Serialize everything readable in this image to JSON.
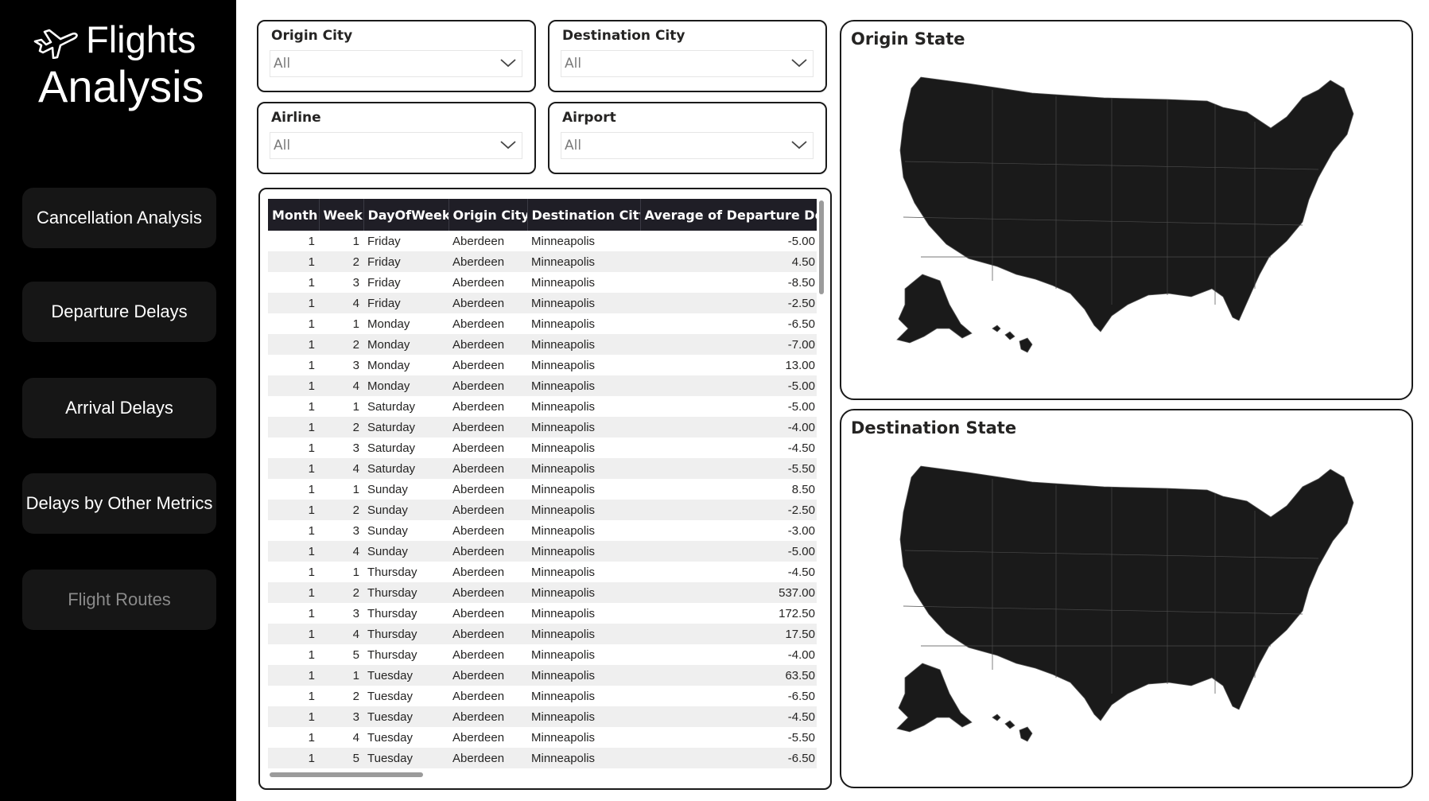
{
  "app": {
    "title_line1": "Flights",
    "title_line2": "Analysis"
  },
  "nav": {
    "items": [
      {
        "label": "Cancellation Analysis"
      },
      {
        "label": "Departure Delays"
      },
      {
        "label": "Arrival Delays"
      },
      {
        "label": "Delays by Other Metrics"
      },
      {
        "label": "Flight Routes"
      }
    ]
  },
  "filters": {
    "origin_city": {
      "title": "Origin City",
      "value": "All"
    },
    "destination_city": {
      "title": "Destination City",
      "value": "All"
    },
    "airline": {
      "title": "Airline",
      "value": "All"
    },
    "airport": {
      "title": "Airport",
      "value": "All"
    }
  },
  "table": {
    "columns": [
      "Month",
      "Week",
      "DayOfWeek",
      "Origin City",
      "Destination City",
      "Average of Departure Delay"
    ],
    "rows": [
      [
        "1",
        "1",
        "Friday",
        "Aberdeen",
        "Minneapolis",
        "-5.00"
      ],
      [
        "1",
        "2",
        "Friday",
        "Aberdeen",
        "Minneapolis",
        "4.50"
      ],
      [
        "1",
        "3",
        "Friday",
        "Aberdeen",
        "Minneapolis",
        "-8.50"
      ],
      [
        "1",
        "4",
        "Friday",
        "Aberdeen",
        "Minneapolis",
        "-2.50"
      ],
      [
        "1",
        "1",
        "Monday",
        "Aberdeen",
        "Minneapolis",
        "-6.50"
      ],
      [
        "1",
        "2",
        "Monday",
        "Aberdeen",
        "Minneapolis",
        "-7.00"
      ],
      [
        "1",
        "3",
        "Monday",
        "Aberdeen",
        "Minneapolis",
        "13.00"
      ],
      [
        "1",
        "4",
        "Monday",
        "Aberdeen",
        "Minneapolis",
        "-5.00"
      ],
      [
        "1",
        "1",
        "Saturday",
        "Aberdeen",
        "Minneapolis",
        "-5.00"
      ],
      [
        "1",
        "2",
        "Saturday",
        "Aberdeen",
        "Minneapolis",
        "-4.00"
      ],
      [
        "1",
        "3",
        "Saturday",
        "Aberdeen",
        "Minneapolis",
        "-4.50"
      ],
      [
        "1",
        "4",
        "Saturday",
        "Aberdeen",
        "Minneapolis",
        "-5.50"
      ],
      [
        "1",
        "1",
        "Sunday",
        "Aberdeen",
        "Minneapolis",
        "8.50"
      ],
      [
        "1",
        "2",
        "Sunday",
        "Aberdeen",
        "Minneapolis",
        "-2.50"
      ],
      [
        "1",
        "3",
        "Sunday",
        "Aberdeen",
        "Minneapolis",
        "-3.00"
      ],
      [
        "1",
        "4",
        "Sunday",
        "Aberdeen",
        "Minneapolis",
        "-5.00"
      ],
      [
        "1",
        "1",
        "Thursday",
        "Aberdeen",
        "Minneapolis",
        "-4.50"
      ],
      [
        "1",
        "2",
        "Thursday",
        "Aberdeen",
        "Minneapolis",
        "537.00"
      ],
      [
        "1",
        "3",
        "Thursday",
        "Aberdeen",
        "Minneapolis",
        "172.50"
      ],
      [
        "1",
        "4",
        "Thursday",
        "Aberdeen",
        "Minneapolis",
        "17.50"
      ],
      [
        "1",
        "5",
        "Thursday",
        "Aberdeen",
        "Minneapolis",
        "-4.00"
      ],
      [
        "1",
        "1",
        "Tuesday",
        "Aberdeen",
        "Minneapolis",
        "63.50"
      ],
      [
        "1",
        "2",
        "Tuesday",
        "Aberdeen",
        "Minneapolis",
        "-6.50"
      ],
      [
        "1",
        "3",
        "Tuesday",
        "Aberdeen",
        "Minneapolis",
        "-4.50"
      ],
      [
        "1",
        "4",
        "Tuesday",
        "Aberdeen",
        "Minneapolis",
        "-5.50"
      ],
      [
        "1",
        "5",
        "Tuesday",
        "Aberdeen",
        "Minneapolis",
        "-6.50"
      ]
    ]
  },
  "maps": {
    "origin": {
      "title": "Origin State"
    },
    "destination": {
      "title": "Destination State"
    }
  },
  "colors": {
    "sidebar_bg": "#000000",
    "nav_button_bg": "#161616",
    "table_header_bg": "#1f1e26",
    "map_fill": "#1a1a1a"
  }
}
